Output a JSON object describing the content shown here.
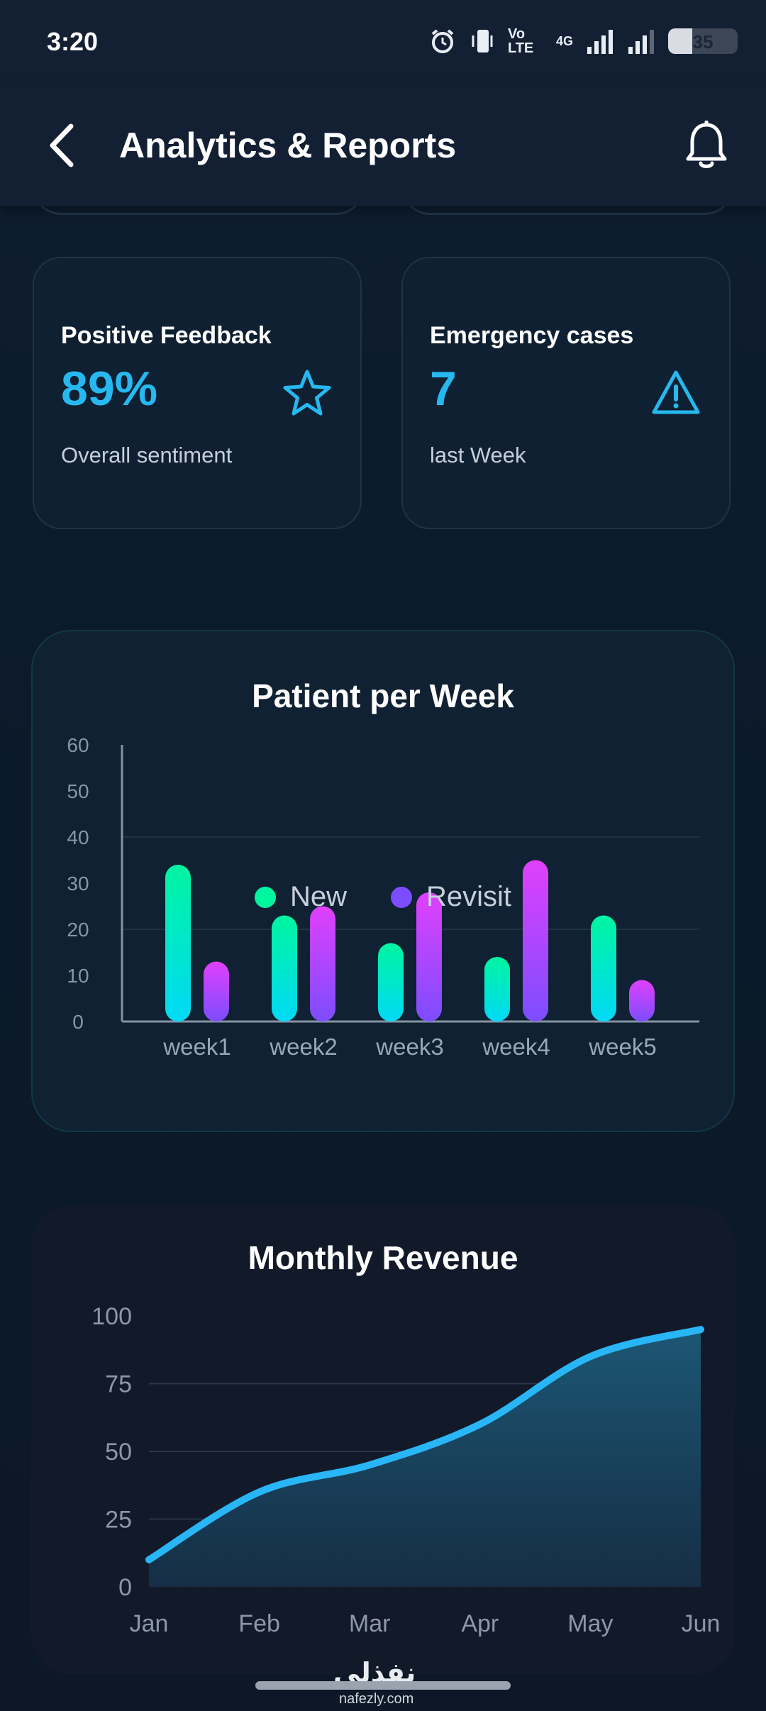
{
  "status_bar": {
    "time": "3:20",
    "network_label": "Vo LTE",
    "network_type": "4G",
    "battery_level": "35",
    "icons": [
      "alarm-icon",
      "vibrate-icon",
      "volte-icon",
      "signal-icon",
      "signal-icon",
      "battery-icon"
    ]
  },
  "header": {
    "title": "Analytics & Reports",
    "back_icon": "chevron-left-icon",
    "notification_icon": "bell-icon"
  },
  "stats": [
    {
      "title": "Positive Feedback",
      "value": "89%",
      "subtitle": "Overall sentiment",
      "icon": "star-icon"
    },
    {
      "title": "Emergency cases",
      "value": "7",
      "subtitle": "last Week",
      "icon": "warning-icon"
    }
  ],
  "colors": {
    "accent": "#27b8f0",
    "new_top": "#00f5a0",
    "new_bottom": "#00d9f5",
    "revisit_top": "#e040fb",
    "revisit_bottom": "#7c4dff",
    "revenue_line": "#29b6f6"
  },
  "chart_data": [
    {
      "type": "bar",
      "title": "Patient per Week",
      "categories": [
        "week1",
        "week2",
        "week3",
        "week4",
        "week5"
      ],
      "series": [
        {
          "name": "New",
          "values": [
            34,
            23,
            17,
            14,
            23
          ]
        },
        {
          "name": "Revisit",
          "values": [
            13,
            25,
            28,
            35,
            9
          ]
        }
      ],
      "ylim": [
        0,
        60
      ],
      "yticks": [
        0,
        10,
        20,
        30,
        40,
        50,
        60
      ],
      "grid": true,
      "legend": "bottom-center"
    },
    {
      "type": "area",
      "title": "Monthly Revenue",
      "x": [
        "Jan",
        "Feb",
        "Mar",
        "Apr",
        "May",
        "Jun"
      ],
      "values": [
        10,
        35,
        45,
        60,
        85,
        95
      ],
      "ylim": [
        0,
        100
      ],
      "yticks": [
        0,
        25,
        50,
        75,
        100
      ],
      "grid": true
    }
  ],
  "watermark": {
    "text": "نفذلي",
    "sub": "nafezly.com"
  }
}
